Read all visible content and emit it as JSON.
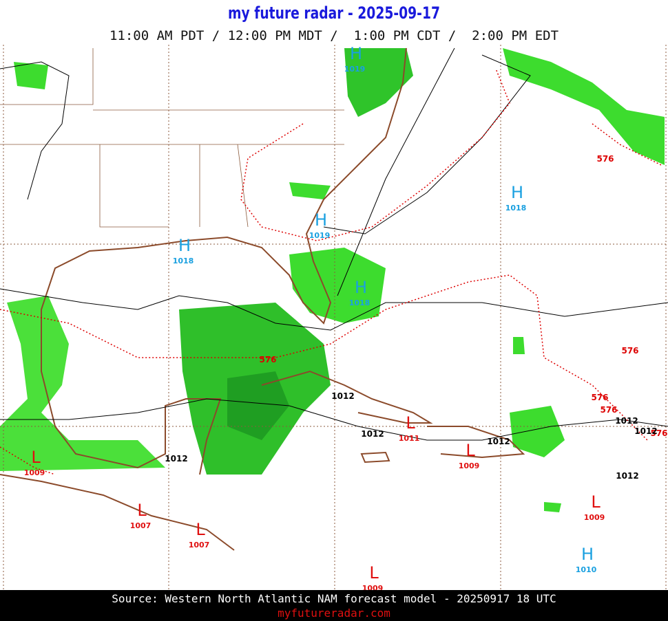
{
  "header": {
    "title": "my future radar - 2025-09-17",
    "times": "11:00 AM PDT / 12:00 PM MDT /  1:00 PM CDT /  2:00 PM EDT"
  },
  "map": {
    "pressure_centers": [
      {
        "letter": "H",
        "pressure": "1019"
      },
      {
        "letter": "H",
        "pressure": "1018"
      },
      {
        "letter": "H",
        "pressure": "1019"
      },
      {
        "letter": "H",
        "pressure": "1018"
      },
      {
        "letter": "H",
        "pressure": "1018"
      },
      {
        "letter": "H",
        "pressure": "1010"
      },
      {
        "letter": "L",
        "pressure": "1009"
      },
      {
        "letter": "L",
        "pressure": "1011"
      },
      {
        "letter": "L",
        "pressure": "1009"
      },
      {
        "letter": "L",
        "pressure": "1007"
      },
      {
        "letter": "L",
        "pressure": "1007"
      },
      {
        "letter": "L",
        "pressure": "1009"
      },
      {
        "letter": "L",
        "pressure": "1009"
      }
    ],
    "thickness_labels": [
      "576",
      "576",
      "576",
      "576",
      "576",
      "576"
    ],
    "isobar_labels": [
      "1012",
      "1012",
      "1012",
      "1012",
      "1012",
      "1012",
      "1012"
    ]
  },
  "footer": {
    "source": "Source: Western North Atlantic NAM forecast model - 20250917 18 UTC",
    "url": "myfutureradar.com"
  }
}
